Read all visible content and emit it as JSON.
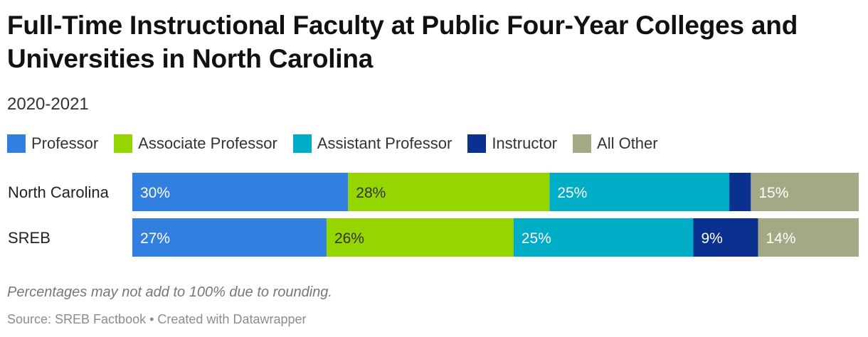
{
  "header": {
    "title": "Full-Time Instructional Faculty at Public Four-Year Colleges and Universities in North Carolina",
    "subtitle": "2020-2021"
  },
  "footer": {
    "note": "Percentages may not add to 100% due to rounding.",
    "source": "Source: SREB Factbook • Created with Datawrapper"
  },
  "chart_data": {
    "type": "bar",
    "orientation": "horizontal",
    "stacked": true,
    "title": "Full-Time Instructional Faculty at Public Four-Year Colleges and Universities in North Carolina",
    "subtitle": "2020-2021",
    "categories": [
      "North Carolina",
      "SREB"
    ],
    "legend_position": "top",
    "grid": false,
    "series": [
      {
        "name": "Professor",
        "color": "#3180e0",
        "text_color": "#ffffff",
        "values": [
          30,
          27
        ],
        "labels": [
          "30%",
          "27%"
        ]
      },
      {
        "name": "Associate Professor",
        "color": "#95d500",
        "text_color": "#333333",
        "values": [
          28,
          26
        ],
        "labels": [
          "28%",
          "26%"
        ]
      },
      {
        "name": "Assistant Professor",
        "color": "#00adc7",
        "text_color": "#ffffff",
        "values": [
          25,
          25
        ],
        "labels": [
          "25%",
          "25%"
        ]
      },
      {
        "name": "Instructor",
        "color": "#0b3190",
        "text_color": "#ffffff",
        "values": [
          3,
          9
        ],
        "labels": [
          "",
          "9%"
        ]
      },
      {
        "name": "All Other",
        "color": "#a3a985",
        "text_color": "#ffffff",
        "values": [
          15,
          14
        ],
        "labels": [
          "15%",
          "14%"
        ]
      }
    ]
  }
}
